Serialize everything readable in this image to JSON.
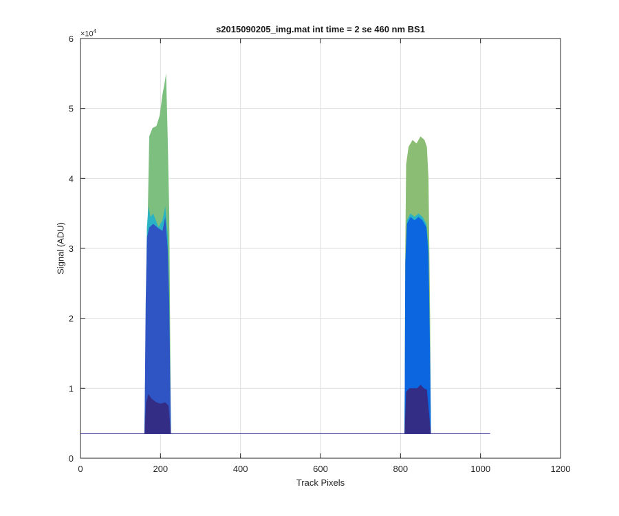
{
  "chart_data": {
    "type": "area",
    "title": "s2015090205_img.mat int time = 2 se  460 nm BS1",
    "xlabel": "Track Pixels",
    "ylabel": "Signal (ADU)",
    "y_exponent_base": "×10",
    "y_exponent_power": "4",
    "xlim": [
      0,
      1200
    ],
    "ylim": [
      0,
      6
    ],
    "xticks": [
      0,
      200,
      400,
      600,
      800,
      1000,
      1200
    ],
    "xtick_labels": [
      "0",
      "200",
      "400",
      "600",
      "800",
      "1000",
      "1200"
    ],
    "yticks": [
      0,
      1,
      2,
      3,
      4,
      5,
      6
    ],
    "ytick_labels": [
      "0",
      "1",
      "2",
      "3",
      "4",
      "5",
      "6"
    ],
    "grid": true,
    "baseline": {
      "x": [
        0,
        1024
      ],
      "y": 0.35
    },
    "peaks": [
      {
        "x_start": 160,
        "x_end": 226,
        "layers": [
          {
            "level": "top",
            "color": "#7dbf7f",
            "profile": [
              [
                160,
                0.35
              ],
              [
                163,
                1.7
              ],
              [
                168,
                3.4
              ],
              [
                172,
                4.6
              ],
              [
                180,
                4.72
              ],
              [
                190,
                4.75
              ],
              [
                198,
                4.9
              ],
              [
                205,
                5.2
              ],
              [
                210,
                5.35
              ],
              [
                214,
                5.5
              ],
              [
                218,
                4.6
              ],
              [
                222,
                3.5
              ],
              [
                225,
                1.2
              ],
              [
                226,
                0.35
              ]
            ]
          },
          {
            "level": "high",
            "color": "#2ab3c4",
            "profile": [
              [
                160,
                0.35
              ],
              [
                163,
                1.8
              ],
              [
                166,
                3.3
              ],
              [
                170,
                3.6
              ],
              [
                175,
                3.45
              ],
              [
                182,
                3.5
              ],
              [
                195,
                3.3
              ],
              [
                205,
                3.4
              ],
              [
                212,
                3.6
              ],
              [
                218,
                3.2
              ],
              [
                222,
                2.3
              ],
              [
                226,
                0.35
              ]
            ]
          },
          {
            "level": "mid",
            "color": "#2f55c4",
            "profile": [
              [
                160,
                0.35
              ],
              [
                163,
                2.2
              ],
              [
                166,
                3.15
              ],
              [
                172,
                3.3
              ],
              [
                182,
                3.35
              ],
              [
                192,
                3.3
              ],
              [
                205,
                3.25
              ],
              [
                212,
                3.45
              ],
              [
                218,
                3.0
              ],
              [
                222,
                2.2
              ],
              [
                226,
                0.35
              ]
            ]
          },
          {
            "level": "low",
            "color": "#332d86",
            "profile": [
              [
                160,
                0.35
              ],
              [
                164,
                0.8
              ],
              [
                170,
                0.92
              ],
              [
                178,
                0.85
              ],
              [
                190,
                0.8
              ],
              [
                200,
                0.78
              ],
              [
                212,
                0.8
              ],
              [
                220,
                0.75
              ],
              [
                224,
                0.5
              ],
              [
                226,
                0.35
              ]
            ]
          }
        ]
      },
      {
        "x_start": 810,
        "x_end": 876,
        "layers": [
          {
            "level": "top",
            "color": "#8cbd75",
            "profile": [
              [
                810,
                0.35
              ],
              [
                812,
                3.0
              ],
              [
                814,
                4.2
              ],
              [
                820,
                4.45
              ],
              [
                830,
                4.55
              ],
              [
                840,
                4.5
              ],
              [
                850,
                4.6
              ],
              [
                860,
                4.55
              ],
              [
                866,
                4.45
              ],
              [
                870,
                4.0
              ],
              [
                874,
                2.0
              ],
              [
                876,
                0.35
              ]
            ]
          },
          {
            "level": "high",
            "color": "#2ab3c4",
            "profile": [
              [
                810,
                0.35
              ],
              [
                812,
                2.5
              ],
              [
                816,
                3.4
              ],
              [
                825,
                3.5
              ],
              [
                835,
                3.45
              ],
              [
                845,
                3.5
              ],
              [
                855,
                3.45
              ],
              [
                865,
                3.35
              ],
              [
                870,
                3.0
              ],
              [
                874,
                1.5
              ],
              [
                876,
                0.35
              ]
            ]
          },
          {
            "level": "mid",
            "color": "#0c66e0",
            "profile": [
              [
                810,
                0.35
              ],
              [
                812,
                2.8
              ],
              [
                816,
                3.35
              ],
              [
                825,
                3.45
              ],
              [
                835,
                3.4
              ],
              [
                845,
                3.45
              ],
              [
                855,
                3.4
              ],
              [
                865,
                3.3
              ],
              [
                870,
                2.9
              ],
              [
                874,
                1.4
              ],
              [
                876,
                0.35
              ]
            ]
          },
          {
            "level": "low",
            "color": "#332d86",
            "profile": [
              [
                810,
                0.35
              ],
              [
                814,
                0.95
              ],
              [
                822,
                1.0
              ],
              [
                832,
                1.0
              ],
              [
                842,
                1.0
              ],
              [
                850,
                1.05
              ],
              [
                858,
                1.0
              ],
              [
                866,
                0.98
              ],
              [
                872,
                0.6
              ],
              [
                876,
                0.35
              ]
            ]
          }
        ]
      }
    ]
  }
}
